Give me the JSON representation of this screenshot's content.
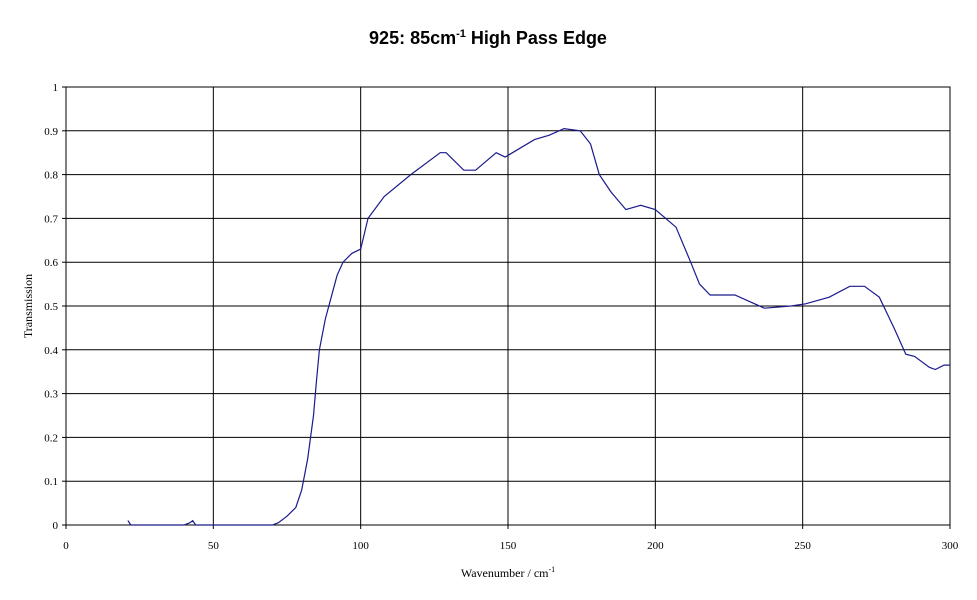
{
  "chart_data": {
    "type": "line",
    "title": {
      "main": "925: 85cm",
      "superscript": "-1",
      "rest": " High Pass Edge"
    },
    "x_label": {
      "main": "Wavenumber / cm",
      "superscript": "-1"
    },
    "y_label": "Transmission",
    "x": [
      21,
      22,
      30,
      40,
      42,
      43,
      44,
      50,
      60,
      70,
      72,
      75,
      78,
      80,
      82,
      84,
      85,
      86,
      88,
      90,
      92,
      94,
      97,
      100,
      102.5,
      108,
      117,
      127,
      129,
      135,
      139,
      146,
      149,
      159,
      164,
      169,
      174.5,
      178,
      181,
      185,
      190,
      195,
      200,
      207,
      212,
      215,
      218.6,
      227,
      232,
      237,
      246,
      251,
      259,
      266,
      271,
      276,
      281,
      285,
      288,
      293,
      295,
      298,
      300
    ],
    "series": [
      {
        "name": "Transmission",
        "color": "#1a1a8c",
        "values": [
          0.01,
          0,
          0,
          0,
          0.005,
          0.01,
          0,
          0,
          0,
          0,
          0.005,
          0.02,
          0.04,
          0.08,
          0.15,
          0.25,
          0.33,
          0.4,
          0.47,
          0.52,
          0.57,
          0.6,
          0.62,
          0.63,
          0.7,
          0.75,
          0.8,
          0.85,
          0.85,
          0.81,
          0.81,
          0.85,
          0.84,
          0.88,
          0.89,
          0.905,
          0.9,
          0.87,
          0.8,
          0.76,
          0.72,
          0.73,
          0.72,
          0.68,
          0.6,
          0.55,
          0.525,
          0.525,
          0.51,
          0.495,
          0.5,
          0.505,
          0.52,
          0.545,
          0.545,
          0.52,
          0.45,
          0.39,
          0.385,
          0.36,
          0.355,
          0.365,
          0.365
        ]
      }
    ],
    "xlim": [
      0,
      300
    ],
    "xticks": [
      0,
      50,
      100,
      150,
      200,
      250,
      300
    ],
    "ylim": [
      0,
      1
    ],
    "yticks": [
      0,
      0.1,
      0.2,
      0.3,
      0.4,
      0.5,
      0.6,
      0.7,
      0.8,
      0.9,
      1
    ],
    "grid": true
  }
}
